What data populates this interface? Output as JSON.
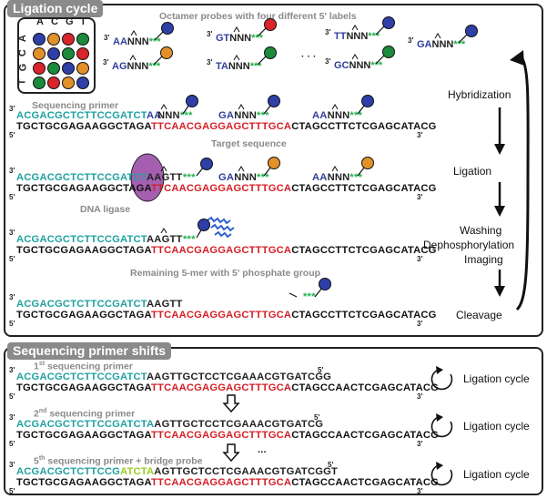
{
  "top_panel": {
    "title": "Ligation cycle",
    "probes_caption": "Octamer probes with four different 5' labels",
    "matrix": {
      "col_headers": [
        "A",
        "C",
        "G",
        "T"
      ],
      "row_headers": [
        "A",
        "C",
        "G",
        "T"
      ],
      "colors": [
        [
          "#2f3fa8",
          "#e2902a",
          "#d9242b",
          "#1c8a3b"
        ],
        [
          "#e2902a",
          "#2f3fa8",
          "#1c8a3b",
          "#d9242b"
        ],
        [
          "#d9242b",
          "#1c8a3b",
          "#2f3fa8",
          "#e2902a"
        ],
        [
          "#1c8a3b",
          "#d9242b",
          "#e2902a",
          "#2f3fa8"
        ]
      ]
    },
    "probes_row1": [
      {
        "prefix": "AA",
        "suffix": "NNN",
        "color": "#2f3fa8"
      },
      {
        "prefix": "GT",
        "suffix": "NNN",
        "color": "#d9242b"
      },
      {
        "prefix": "TT",
        "suffix": "NNN",
        "color": "#2f3fa8"
      },
      {
        "prefix": "GA",
        "suffix": "NNN",
        "color": "#2f3fa8"
      }
    ],
    "probes_row2": [
      {
        "prefix": "AG",
        "suffix": "NNN",
        "color": "#e2902a"
      },
      {
        "prefix": "TA",
        "suffix": "NNN",
        "color": "#1c8a3b"
      },
      {
        "prefix": "GC",
        "suffix": "NNN",
        "color": "#1c8a3b"
      }
    ],
    "probe_stars": "***",
    "probe_prime": "3'",
    "ellipsis": "· · ·",
    "labels": {
      "sequencing_primer": "Sequencing primer",
      "target_sequence": "Target sequence",
      "dna_ligase": "DNA ligase",
      "remaining": "Remaining 5-mer with 5' phosphate group"
    },
    "primer": "ACGACGCTCTTCCGATCT",
    "template_left": "TGCTGCGAGAAGGCTAGA",
    "template_target": "TTCAACGAGGAGCTTTGCA",
    "template_right": "CTAGCCTTCTCGAGCATACG",
    "row1_probes": [
      "AANNN",
      "GANNN",
      "AANNN"
    ],
    "row2_ligated": "AAGTT",
    "row2_probes": [
      "GANNN",
      "AANNN"
    ],
    "row3_ligated": "AAGTT",
    "row4_ligated": "AAGTT",
    "prime3": "3'",
    "prime5": "5'",
    "steps": [
      "Hybridization",
      "Ligation",
      "Washing",
      "Dephosphorylation",
      "Imaging",
      "Cleavage"
    ]
  },
  "bottom_panel": {
    "title": "Sequencing primer shifts",
    "primer_labels": [
      "1st sequencing primer",
      "2nd sequencing primer",
      "5th sequencing primer + bridge probe"
    ],
    "sup": [
      "st",
      "nd",
      "th"
    ],
    "label_nums": [
      "1",
      "2",
      "5"
    ],
    "label_rest": [
      " sequencing primer",
      " sequencing primer",
      " sequencing primer + bridge probe"
    ],
    "row1_primer": "ACGACGCTCTTCCGATCT",
    "row1_ext": "AAGTTGCTCCTCGAAACGTGATCGG",
    "row2_primer": "ACGACGCTCTTCCGATCTA",
    "row2_ext": "AGTTGCTCCTCGAAACGTGATCG",
    "row3_primer": "ACGACGCTCTTCCG",
    "row3_bridge": "ATCTA",
    "row3_ext": "AGTTGCTCCTCGAAACGTGATCGGT",
    "template_left": "TGCTGCGAGAAGGCTAGA",
    "template_target": "TTCAACGAGGAGCTTTGCA",
    "template_right": "CTAGCCAACTCGAGCATACG",
    "cycle_label": "Ligation cycle",
    "ellipsis": "...",
    "prime3": "3'",
    "prime5": "5'"
  }
}
